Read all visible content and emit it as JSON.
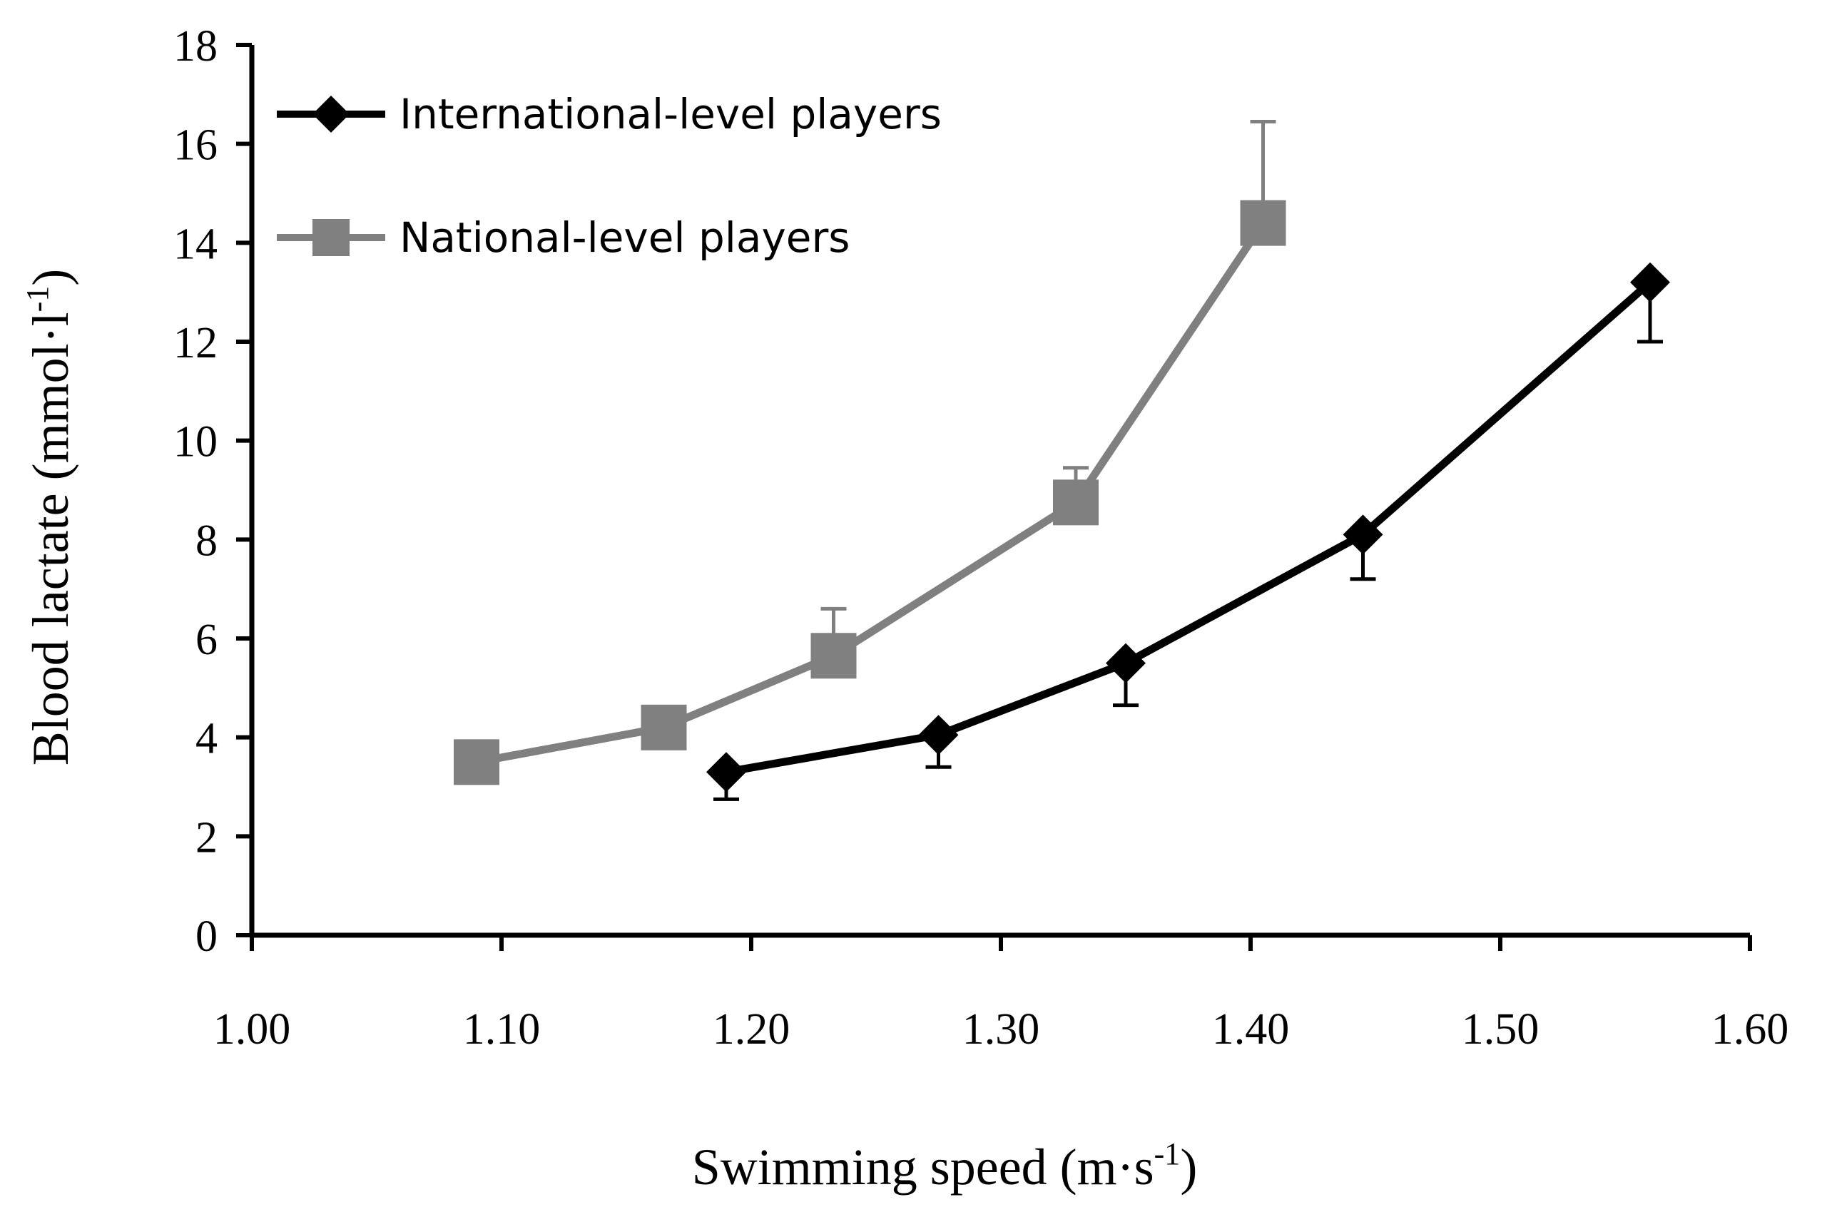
{
  "chart_data": {
    "type": "line",
    "xlabel": "Swimming speed (m·s",
    "xlabel_sup": "-1",
    "xlabel_end": ")",
    "ylabel": "Blood lactate (mmol·l",
    "ylabel_sup": "-1",
    "ylabel_end": ")",
    "xlim": [
      1.0,
      1.6
    ],
    "ylim": [
      0,
      18
    ],
    "x_ticks": [
      "1.00",
      "1.10",
      "1.20",
      "1.30",
      "1.40",
      "1.50",
      "1.60"
    ],
    "y_ticks": [
      "0",
      "2",
      "4",
      "6",
      "8",
      "10",
      "12",
      "14",
      "16",
      "18"
    ],
    "legend_position": "top-left",
    "grid": false,
    "series": [
      {
        "name": "International-level players",
        "color": "#000000",
        "marker": "diamond",
        "error_direction": "down",
        "x": [
          1.19,
          1.275,
          1.35,
          1.445,
          1.56
        ],
        "y": [
          3.3,
          4.05,
          5.5,
          8.1,
          13.2
        ],
        "error": [
          0.55,
          0.65,
          0.85,
          0.9,
          1.2
        ]
      },
      {
        "name": "National-level players",
        "color": "#808080",
        "marker": "square",
        "error_direction": "up",
        "x": [
          1.09,
          1.165,
          1.233,
          1.33,
          1.405
        ],
        "y": [
          3.5,
          4.2,
          5.65,
          8.75,
          14.4
        ],
        "error": [
          0.0,
          0.0,
          0.95,
          0.7,
          2.05
        ]
      }
    ]
  }
}
